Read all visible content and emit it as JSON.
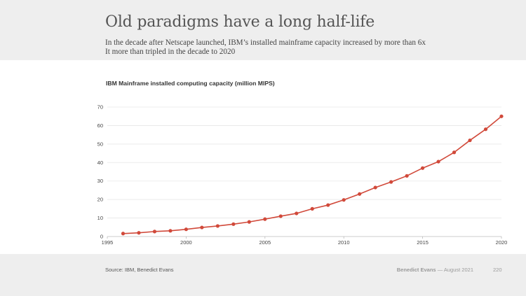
{
  "slide": {
    "title": "Old paradigms have a long half-life",
    "subtitle_lines": [
      "In the decade after Netscape launched, IBM’s installed mainframe capacity increased by more than 6x",
      "It more than tripled in the decade to 2020"
    ],
    "source": "Source: IBM, Benedict Evans",
    "author": "Benedict Evans",
    "date": "— August 2021",
    "page": "220"
  },
  "colors": {
    "header_bg": "#eeeeee",
    "line": "#d1493a",
    "grid": "#e6e6e6",
    "axis": "#bbbbbb"
  },
  "chart_data": {
    "type": "line",
    "title": "IBM Mainframe installed computing capacity (million MIPS)",
    "xlabel": "",
    "ylabel": "",
    "xlim": [
      1995,
      2020
    ],
    "ylim": [
      0,
      70
    ],
    "xticks": [
      1995,
      2000,
      2005,
      2010,
      2015,
      2020
    ],
    "yticks": [
      0,
      10,
      20,
      30,
      40,
      50,
      60,
      70
    ],
    "grid": true,
    "series": [
      {
        "name": "IBM Mainframe installed computing capacity",
        "x": [
          1996,
          1997,
          1998,
          1999,
          2000,
          2001,
          2002,
          2003,
          2004,
          2005,
          2006,
          2007,
          2008,
          2009,
          2010,
          2011,
          2012,
          2013,
          2014,
          2015,
          2016,
          2017,
          2018,
          2019,
          2020
        ],
        "values": [
          1.6,
          2.0,
          2.7,
          3.1,
          3.9,
          4.9,
          5.7,
          6.7,
          7.9,
          9.4,
          11.0,
          12.5,
          15.0,
          17.0,
          19.8,
          23.0,
          26.5,
          29.5,
          32.8,
          37.0,
          40.5,
          45.5,
          52.0,
          58.0,
          65.0
        ]
      }
    ]
  }
}
